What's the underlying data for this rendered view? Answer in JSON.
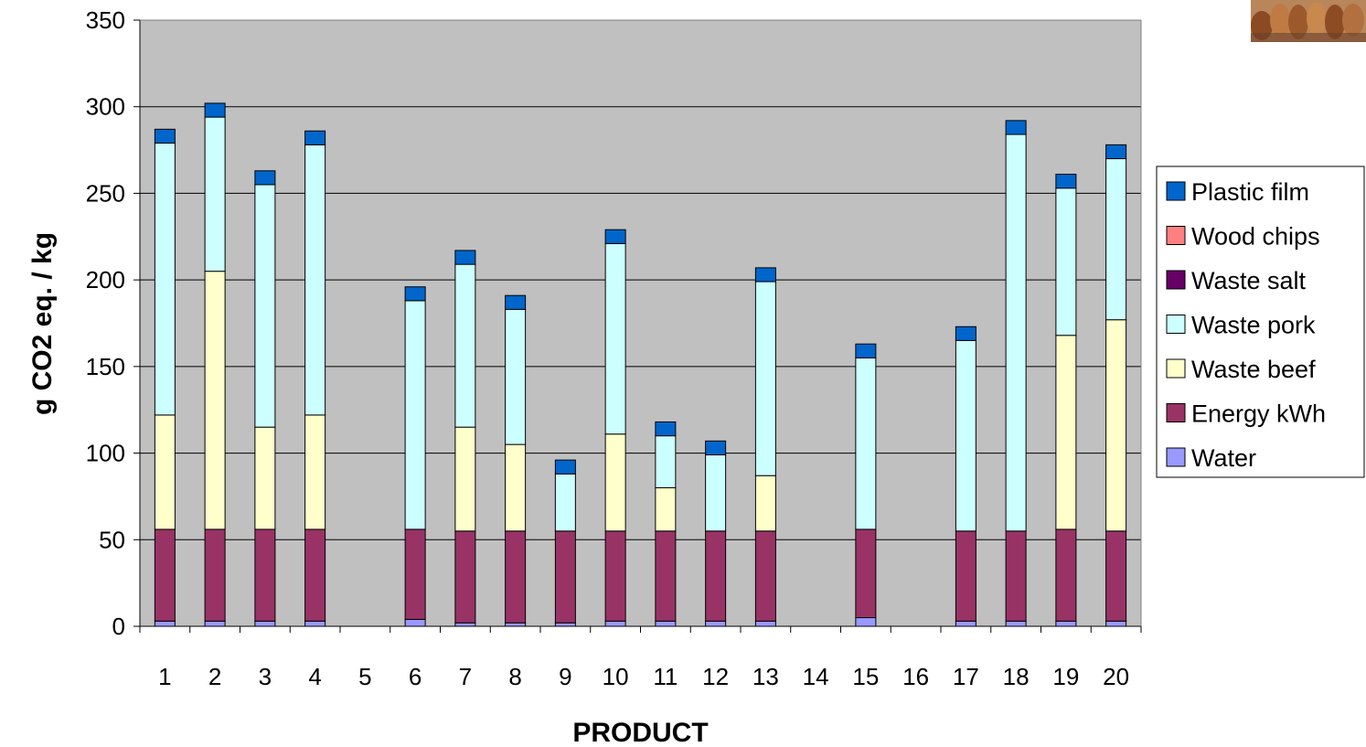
{
  "chart_data": {
    "type": "bar",
    "stacked": true,
    "title": "",
    "xlabel": "PRODUCT",
    "ylabel": "g CO2 eq. / kg",
    "ylim": [
      0,
      350
    ],
    "yticks": [
      0,
      50,
      100,
      150,
      200,
      250,
      300,
      350
    ],
    "grid": true,
    "legend_position": "right",
    "categories": [
      "1",
      "2",
      "3",
      "4",
      "5",
      "6",
      "7",
      "8",
      "9",
      "10",
      "11",
      "12",
      "13",
      "14",
      "15",
      "16",
      "17",
      "18",
      "19",
      "20"
    ],
    "series": [
      {
        "name": "Water",
        "color": "#9999ff",
        "values": [
          3,
          3,
          3,
          3,
          0,
          4,
          2,
          2,
          2,
          3,
          3,
          3,
          3,
          0,
          5,
          0,
          3,
          3,
          3,
          3
        ]
      },
      {
        "name": "Energy kWh",
        "color": "#993366",
        "values": [
          53,
          53,
          53,
          53,
          0,
          52,
          53,
          53,
          53,
          52,
          52,
          52,
          52,
          0,
          51,
          0,
          52,
          52,
          53,
          52
        ]
      },
      {
        "name": "Waste beef",
        "color": "#ffffcc",
        "values": [
          66,
          149,
          59,
          66,
          0,
          0,
          60,
          50,
          0,
          56,
          25,
          0,
          32,
          0,
          0,
          0,
          0,
          0,
          112,
          122
        ]
      },
      {
        "name": "Waste pork",
        "color": "#ccffff",
        "values": [
          157,
          89,
          140,
          156,
          0,
          132,
          94,
          78,
          33,
          110,
          30,
          44,
          112,
          0,
          99,
          0,
          110,
          229,
          85,
          93
        ]
      },
      {
        "name": "Waste salt",
        "color": "#660066",
        "values": [
          0,
          0,
          0,
          0,
          0,
          0,
          0,
          0,
          0,
          0,
          0,
          0,
          0,
          0,
          0,
          0,
          0,
          0,
          0,
          0
        ]
      },
      {
        "name": "Wood chips",
        "color": "#ff8080",
        "values": [
          0,
          0,
          0,
          0,
          0,
          0,
          0,
          0,
          0,
          0,
          0,
          0,
          0,
          0,
          0,
          0,
          0,
          0,
          0,
          0
        ]
      },
      {
        "name": "Plastic film",
        "color": "#0066cc",
        "values": [
          8,
          8,
          8,
          8,
          0,
          8,
          8,
          8,
          8,
          8,
          8,
          8,
          8,
          0,
          8,
          0,
          8,
          8,
          8,
          8
        ]
      }
    ],
    "legend_order": [
      "Plastic film",
      "Wood chips",
      "Waste salt",
      "Waste pork",
      "Waste beef",
      "Energy kWh",
      "Water"
    ],
    "colors": {
      "plot_background": "#c0c0c0",
      "grid": "#000000",
      "bar_border": "#000000"
    }
  }
}
